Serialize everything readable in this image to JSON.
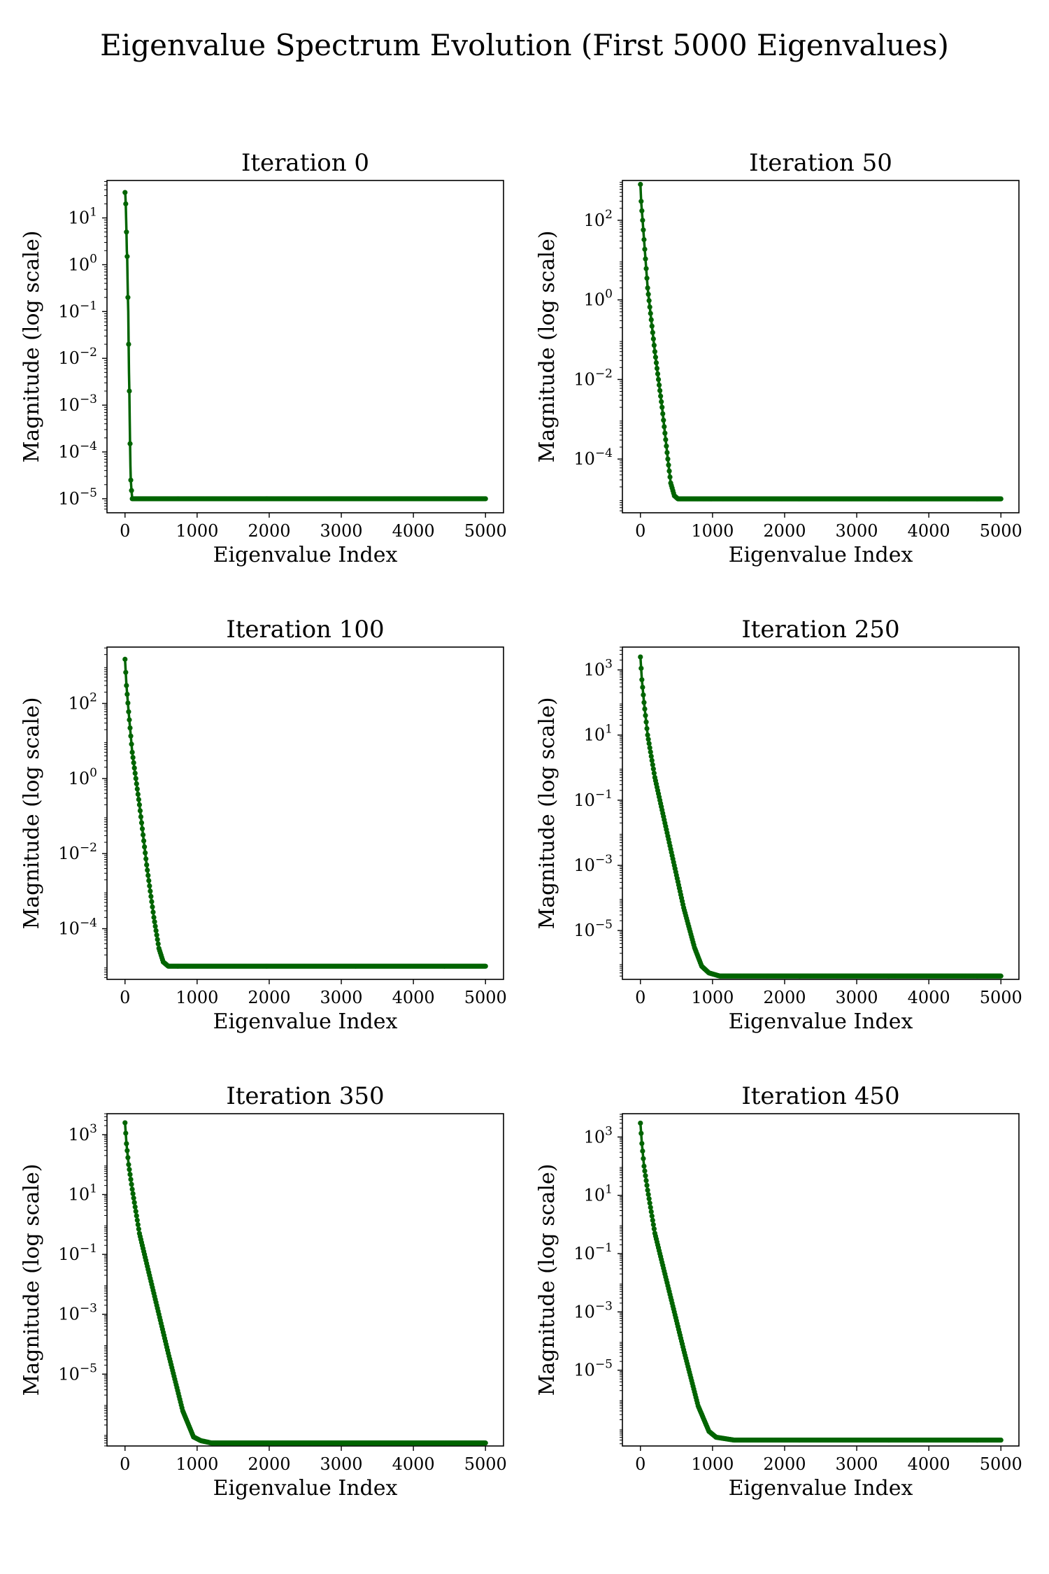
{
  "title": "Eigenvalue Spectrum Evolution (First 5000 Eigenvalues)",
  "colors": {
    "series": "#006400",
    "axes": "#000000",
    "background": "#ffffff"
  },
  "chart_data": [
    {
      "type": "line",
      "title": "Iteration 0",
      "xlabel": "Eigenvalue Index",
      "ylabel": "Magnitude (log scale)",
      "yscale": "log",
      "xlim": [
        -250,
        5250
      ],
      "ylim_exp": [
        -5.3,
        1.8
      ],
      "xticks": [
        0,
        1000,
        2000,
        3000,
        4000,
        5000
      ],
      "yticks_exp": [
        -5,
        -4,
        -3,
        -2,
        -1,
        0,
        1
      ],
      "grid": false,
      "points": [
        [
          0,
          35
        ],
        [
          5,
          30
        ],
        [
          10,
          20
        ],
        [
          15,
          10
        ],
        [
          20,
          5
        ],
        [
          25,
          2
        ],
        [
          30,
          1.5
        ],
        [
          35,
          0.5
        ],
        [
          40,
          0.2
        ],
        [
          45,
          0.1
        ],
        [
          50,
          0.02
        ],
        [
          55,
          0.005
        ],
        [
          60,
          0.002
        ],
        [
          65,
          0.0005
        ],
        [
          70,
          0.00015
        ],
        [
          75,
          5e-05
        ],
        [
          80,
          2.5e-05
        ],
        [
          90,
          1.5e-05
        ],
        [
          100,
          1e-05
        ],
        [
          5000,
          1e-05
        ]
      ]
    },
    {
      "type": "line",
      "title": "Iteration 50",
      "xlabel": "Eigenvalue Index",
      "ylabel": "Magnitude (log scale)",
      "yscale": "log",
      "xlim": [
        -250,
        5250
      ],
      "ylim_exp": [
        -5.35,
        3.0
      ],
      "xticks": [
        0,
        1000,
        2000,
        3000,
        4000,
        5000
      ],
      "yticks_exp": [
        -4,
        -2,
        0,
        2
      ],
      "grid": false,
      "points": [
        [
          0,
          800
        ],
        [
          10,
          300
        ],
        [
          30,
          100
        ],
        [
          100,
          2
        ],
        [
          200,
          0.05
        ],
        [
          300,
          0.002
        ],
        [
          380,
          0.0001
        ],
        [
          420,
          2.5e-05
        ],
        [
          470,
          1.2e-05
        ],
        [
          520,
          1e-05
        ],
        [
          600,
          1e-05
        ],
        [
          5000,
          1e-05
        ]
      ]
    },
    {
      "type": "line",
      "title": "Iteration 100",
      "xlabel": "Eigenvalue Index",
      "ylabel": "Magnitude (log scale)",
      "yscale": "log",
      "xlim": [
        -250,
        5250
      ],
      "ylim_exp": [
        -5.35,
        3.5
      ],
      "xticks": [
        0,
        1000,
        2000,
        3000,
        4000,
        5000
      ],
      "yticks_exp": [
        -4,
        -2,
        0,
        2
      ],
      "grid": false,
      "points": [
        [
          0,
          1500
        ],
        [
          20,
          300
        ],
        [
          50,
          60
        ],
        [
          100,
          5
        ],
        [
          200,
          0.2
        ],
        [
          300,
          0.005
        ],
        [
          400,
          0.0002
        ],
        [
          470,
          3e-05
        ],
        [
          530,
          1.3e-05
        ],
        [
          600,
          1e-05
        ],
        [
          5000,
          1e-05
        ]
      ]
    },
    {
      "type": "line",
      "title": "Iteration 250",
      "xlabel": "Eigenvalue Index",
      "ylabel": "Magnitude (log scale)",
      "yscale": "log",
      "xlim": [
        -250,
        5250
      ],
      "ylim_exp": [
        -6.5,
        3.7
      ],
      "xticks": [
        0,
        1000,
        2000,
        3000,
        4000,
        5000
      ],
      "yticks_exp": [
        -5,
        -3,
        -1,
        1,
        3
      ],
      "grid": false,
      "points": [
        [
          0,
          2500
        ],
        [
          20,
          500
        ],
        [
          50,
          100
        ],
        [
          100,
          10
        ],
        [
          200,
          0.5
        ],
        [
          400,
          0.005
        ],
        [
          600,
          5e-05
        ],
        [
          750,
          3e-06
        ],
        [
          850,
          8e-07
        ],
        [
          950,
          5e-07
        ],
        [
          1100,
          4e-07
        ],
        [
          5000,
          4e-07
        ]
      ]
    },
    {
      "type": "line",
      "title": "Iteration 350",
      "xlabel": "Eigenvalue Index",
      "ylabel": "Magnitude (log scale)",
      "yscale": "log",
      "xlim": [
        -250,
        5250
      ],
      "ylim_exp": [
        -7.4,
        3.7
      ],
      "xticks": [
        0,
        1000,
        2000,
        3000,
        4000,
        5000
      ],
      "yticks_exp": [
        -5,
        -3,
        -1,
        1,
        3
      ],
      "grid": false,
      "points": [
        [
          0,
          2500
        ],
        [
          20,
          500
        ],
        [
          50,
          100
        ],
        [
          100,
          15
        ],
        [
          200,
          0.5
        ],
        [
          400,
          0.005
        ],
        [
          600,
          5e-05
        ],
        [
          800,
          6e-07
        ],
        [
          950,
          8e-08
        ],
        [
          1050,
          6e-08
        ],
        [
          1200,
          5e-08
        ],
        [
          5000,
          5e-08
        ]
      ]
    },
    {
      "type": "line",
      "title": "Iteration 450",
      "xlabel": "Eigenvalue Index",
      "ylabel": "Magnitude (log scale)",
      "yscale": "log",
      "xlim": [
        -250,
        5250
      ],
      "ylim_exp": [
        -7.6,
        3.8
      ],
      "xticks": [
        0,
        1000,
        2000,
        3000,
        4000,
        5000
      ],
      "yticks_exp": [
        -5,
        -3,
        -1,
        1,
        3
      ],
      "grid": false,
      "points": [
        [
          0,
          3000
        ],
        [
          20,
          600
        ],
        [
          50,
          100
        ],
        [
          100,
          15
        ],
        [
          200,
          0.5
        ],
        [
          400,
          0.005
        ],
        [
          600,
          5e-05
        ],
        [
          800,
          6e-07
        ],
        [
          950,
          8e-08
        ],
        [
          1050,
          5e-08
        ],
        [
          1300,
          4e-08
        ],
        [
          5000,
          4e-08
        ]
      ]
    }
  ]
}
